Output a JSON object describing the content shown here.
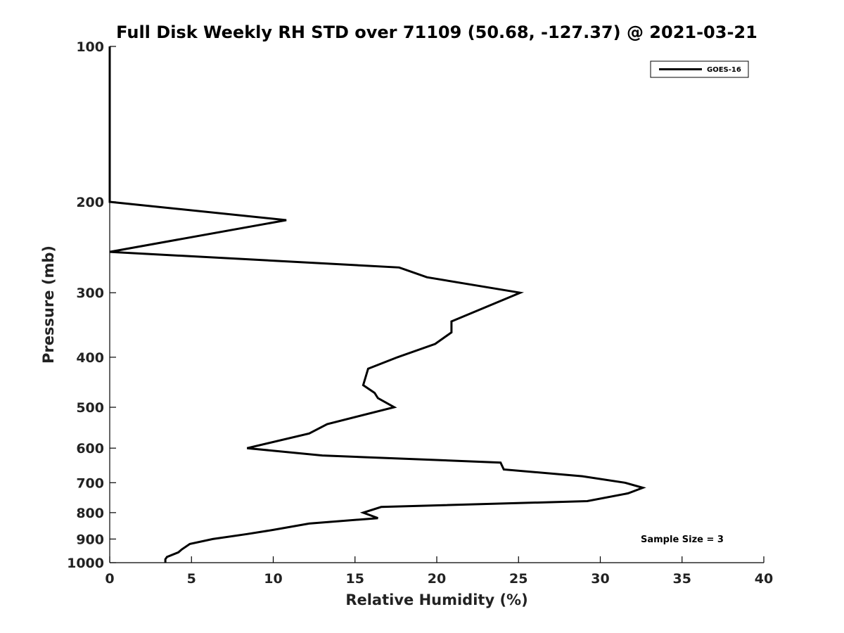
{
  "chart_data": {
    "type": "line",
    "title": "Full Disk Weekly RH STD over 71109 (50.68, -127.37) @ 2021-03-21",
    "xlabel": "Relative Humidity (%)",
    "ylabel": "Pressure (mb)",
    "xlim": [
      0,
      40
    ],
    "ylim": [
      1000,
      100
    ],
    "y_scale": "log",
    "grid": false,
    "legend_position": "top-right",
    "x_ticks": [
      0,
      5,
      10,
      15,
      20,
      25,
      30,
      35,
      40
    ],
    "y_ticks": [
      100,
      200,
      300,
      400,
      500,
      600,
      700,
      800,
      900,
      1000
    ],
    "annotation": "Sample Size = 3",
    "series": [
      {
        "name": "GOES-16",
        "color": "#000000",
        "points": [
          {
            "x": 0,
            "y": 100
          },
          {
            "x": 0,
            "y": 200
          },
          {
            "x": 10.8,
            "y": 217
          },
          {
            "x": 0,
            "y": 250
          },
          {
            "x": 17.7,
            "y": 268
          },
          {
            "x": 19.4,
            "y": 280
          },
          {
            "x": 25.1,
            "y": 300
          },
          {
            "x": 20.9,
            "y": 341
          },
          {
            "x": 20.9,
            "y": 358
          },
          {
            "x": 19.9,
            "y": 377
          },
          {
            "x": 17.6,
            "y": 400
          },
          {
            "x": 15.8,
            "y": 421
          },
          {
            "x": 15.5,
            "y": 453
          },
          {
            "x": 16.2,
            "y": 469
          },
          {
            "x": 16.4,
            "y": 480
          },
          {
            "x": 17.4,
            "y": 500
          },
          {
            "x": 13.3,
            "y": 539
          },
          {
            "x": 12.2,
            "y": 562
          },
          {
            "x": 8.4,
            "y": 600
          },
          {
            "x": 13.0,
            "y": 620
          },
          {
            "x": 23.9,
            "y": 640
          },
          {
            "x": 24.1,
            "y": 660
          },
          {
            "x": 28.9,
            "y": 680
          },
          {
            "x": 31.5,
            "y": 700
          },
          {
            "x": 32.6,
            "y": 716
          },
          {
            "x": 31.7,
            "y": 734
          },
          {
            "x": 29.2,
            "y": 760
          },
          {
            "x": 16.6,
            "y": 780
          },
          {
            "x": 15.5,
            "y": 800
          },
          {
            "x": 16.4,
            "y": 820
          },
          {
            "x": 12.2,
            "y": 840
          },
          {
            "x": 10.0,
            "y": 864
          },
          {
            "x": 8.4,
            "y": 880
          },
          {
            "x": 6.3,
            "y": 900
          },
          {
            "x": 4.9,
            "y": 920
          },
          {
            "x": 4.4,
            "y": 943
          },
          {
            "x": 4.2,
            "y": 955
          },
          {
            "x": 3.5,
            "y": 975
          },
          {
            "x": 3.4,
            "y": 985
          },
          {
            "x": 3.4,
            "y": 1000
          }
        ]
      }
    ]
  }
}
